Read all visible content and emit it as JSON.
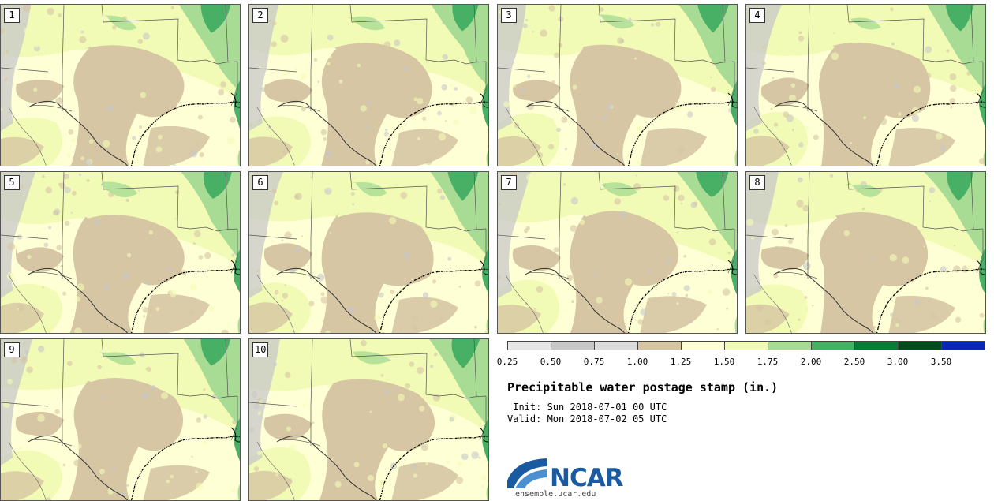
{
  "title": "Precipitable water postage stamp (in.)",
  "init": " Init: Sun 2018-07-01 00 UTC",
  "valid": "Valid: Mon 2018-07-02 05 UTC",
  "site": "ensemble.ucar.edu",
  "logo_text": "NCAR",
  "members": [
    "1",
    "2",
    "3",
    "4",
    "5",
    "6",
    "7",
    "8",
    "9",
    "10"
  ],
  "colorbar": {
    "ticks": [
      "0.25",
      "0.50",
      "0.75",
      "1.00",
      "1.25",
      "1.50",
      "1.75",
      "2.00",
      "2.50",
      "3.00",
      "3.50"
    ],
    "colors": [
      "#e6e6e6",
      "#c8c8c8",
      "#dcdcdc",
      "#d6c6a4",
      "#ffffd6",
      "#f2fbb6",
      "#a8dc94",
      "#48b065",
      "#0e7a38",
      "#004c1c",
      "#0a28b4"
    ],
    "band_values": [
      "0.25-0.50",
      "0.50-0.75",
      "0.75-1.00",
      "1.00-1.25",
      "1.25-1.50",
      "1.50-1.75",
      "1.75-2.00",
      "2.00-2.50",
      "2.50-3.00",
      "3.00-3.50",
      ">3.50"
    ]
  },
  "colors": {
    "dry_tan": "#d6c6a4",
    "pale_yellow": "#ffffd6",
    "light_green": "#f2fbb6",
    "green": "#a8dc94",
    "mid_green": "#48b065",
    "dark_green": "#0e7a38",
    "grey": "#c8c8c8",
    "ncar_blue": "#1a5aa0"
  }
}
